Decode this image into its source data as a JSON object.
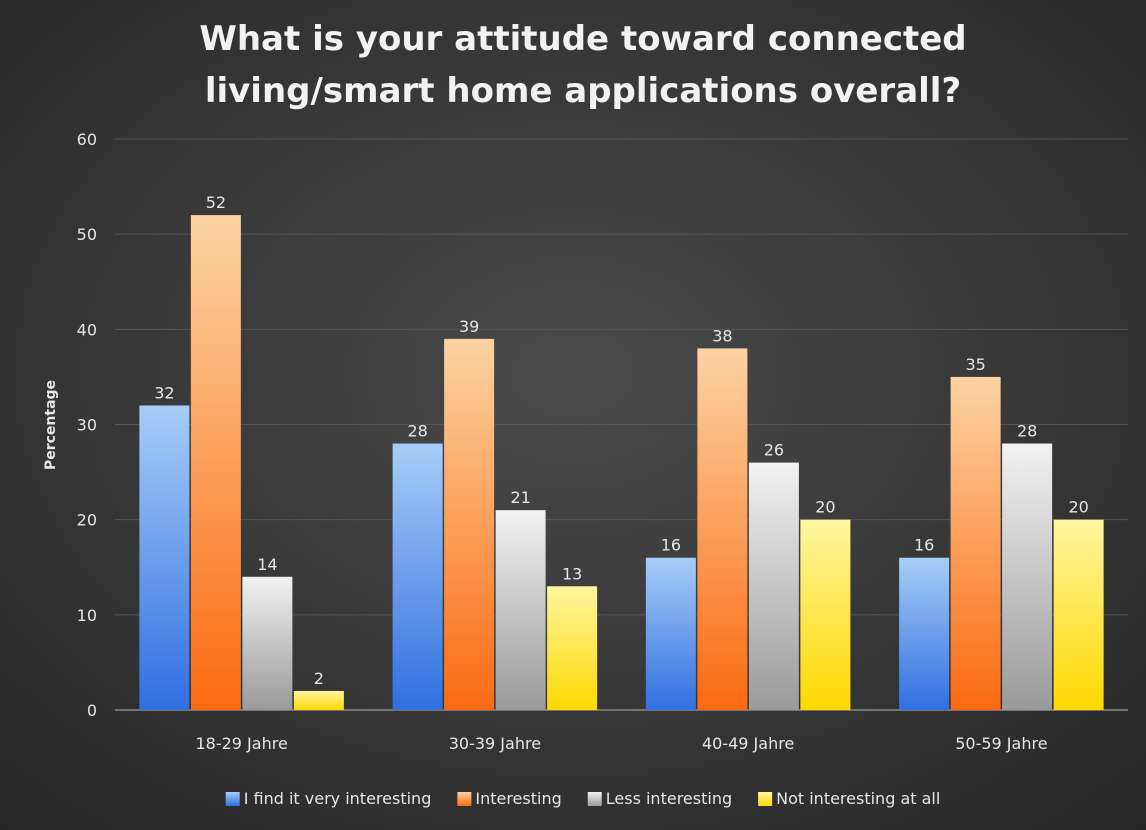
{
  "chart_data": {
    "type": "bar",
    "title_lines": [
      "What is your attitude toward connected",
      "living/smart home applications overall?"
    ],
    "xlabel": "",
    "ylabel": "Percentage",
    "ylim": [
      0,
      60
    ],
    "yticks": [
      0,
      10,
      20,
      30,
      40,
      50,
      60
    ],
    "categories": [
      "18-29 Jahre",
      "30-39 Jahre",
      "40-49 Jahre",
      "50-59 Jahre"
    ],
    "series": [
      {
        "name": "I find it very interesting",
        "values": [
          32,
          28,
          16,
          16
        ],
        "color_top": "#a8cdf8",
        "color_bottom": "#2f6fe0"
      },
      {
        "name": "Interesting",
        "values": [
          52,
          39,
          38,
          35
        ],
        "color_top": "#fcd3a2",
        "color_bottom": "#fb6a12"
      },
      {
        "name": "Less interesting",
        "values": [
          14,
          21,
          26,
          28
        ],
        "color_top": "#f2f2f2",
        "color_bottom": "#9a9a9a"
      },
      {
        "name": "Not interesting at all",
        "values": [
          2,
          13,
          20,
          20
        ],
        "color_top": "#fff6a0",
        "color_bottom": "#ffd800"
      }
    ],
    "grid": true,
    "legend_position": "bottom",
    "data_labels": true,
    "background_color": "#3b3b3b"
  }
}
